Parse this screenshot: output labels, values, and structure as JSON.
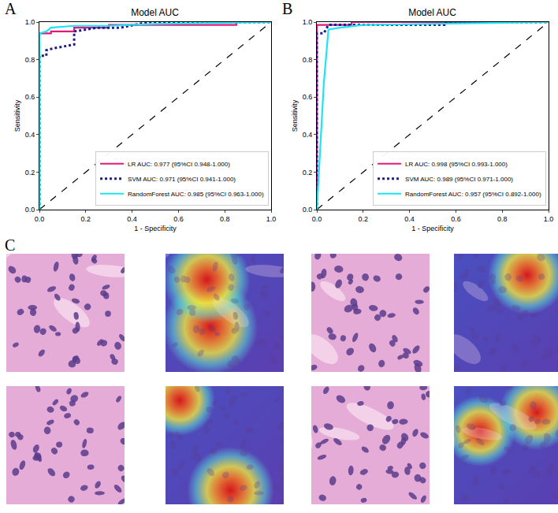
{
  "chart_data": [
    {
      "label": "A",
      "type": "line",
      "title": "Model AUC",
      "x_label": "1 - Specificity",
      "y_label": "Sensitivity",
      "xlim": [
        0,
        1
      ],
      "ylim": [
        0,
        1
      ],
      "xticks": [
        {
          "value": 0,
          "label": "0.0"
        },
        {
          "value": 0.2,
          "label": "0.2"
        },
        {
          "value": 0.4,
          "label": "0.4"
        },
        {
          "value": 0.6,
          "label": "0.6"
        },
        {
          "value": 0.8,
          "label": "0.8"
        },
        {
          "value": 1,
          "label": "1.0"
        }
      ],
      "yticks": [
        {
          "value": 0,
          "label": "0.0"
        },
        {
          "value": 0.2,
          "label": "0.2"
        },
        {
          "value": 0.4,
          "label": "0.4"
        },
        {
          "value": 0.6,
          "label": "0.6"
        },
        {
          "value": 0.8,
          "label": "0.8"
        },
        {
          "value": 1,
          "label": "1.0"
        }
      ],
      "grid": false,
      "legend": "lower right",
      "series": [
        {
          "name": "LR AUC: 0.977 (95%CI 0.948-1.000)",
          "color": "#e0197d",
          "line_style": "solid",
          "x": [
            0,
            0,
            0.05,
            0.05,
            0.15,
            0.15,
            0.3,
            0.3,
            0.85,
            0.85,
            1
          ],
          "values": [
            0,
            0.94,
            0.94,
            0.95,
            0.95,
            0.97,
            0.97,
            0.985,
            0.985,
            1,
            1
          ]
        },
        {
          "name": "SVM AUC: 0.971 (95%CI 0.941-1.000)",
          "color": "#1c1c8a",
          "line_style": "dot",
          "x": [
            0,
            0,
            0.03,
            0.03,
            0.06,
            0.1,
            0.15,
            0.15,
            0.2,
            0.25,
            0.35,
            0.47,
            1
          ],
          "values": [
            0,
            0.82,
            0.82,
            0.85,
            0.86,
            0.87,
            0.88,
            0.95,
            0.96,
            0.97,
            0.97,
            1,
            1
          ]
        },
        {
          "name": "RandomForest AUC: 0.985 (95%CI 0.963-1.000)",
          "color": "#1ee3f0",
          "line_style": "solid",
          "x": [
            0,
            0,
            0.03,
            0.05,
            0.15,
            0.3,
            0.5,
            1
          ],
          "values": [
            0,
            0.94,
            0.95,
            0.97,
            0.98,
            0.98,
            0.99,
            1
          ]
        }
      ],
      "reference_line": {
        "x": [
          0,
          1
        ],
        "values": [
          0,
          1
        ],
        "color": "#000000",
        "line_style": "dash"
      }
    },
    {
      "label": "B",
      "type": "line",
      "title": "Model AUC",
      "x_label": "1 - Specificity",
      "y_label": "Sensitivity",
      "xlim": [
        0,
        1
      ],
      "ylim": [
        0,
        1
      ],
      "xticks": [
        {
          "value": 0,
          "label": "0.0"
        },
        {
          "value": 0.2,
          "label": "0.2"
        },
        {
          "value": 0.4,
          "label": "0.4"
        },
        {
          "value": 0.6,
          "label": "0.6"
        },
        {
          "value": 0.8,
          "label": "0.8"
        },
        {
          "value": 1,
          "label": "1.0"
        }
      ],
      "yticks": [
        {
          "value": 0,
          "label": "0.0"
        },
        {
          "value": 0.2,
          "label": "0.2"
        },
        {
          "value": 0.4,
          "label": "0.4"
        },
        {
          "value": 0.6,
          "label": "0.6"
        },
        {
          "value": 0.8,
          "label": "0.8"
        },
        {
          "value": 1,
          "label": "1.0"
        }
      ],
      "grid": false,
      "legend": "lower right",
      "series": [
        {
          "name": "LR AUC: 0.998 (95%CI 0.993-1.000)",
          "color": "#e0197d",
          "line_style": "solid",
          "x": [
            0,
            0,
            0.15,
            0.15,
            1
          ],
          "values": [
            0,
            0.985,
            0.985,
            1,
            1
          ]
        },
        {
          "name": "SVM AUC: 0.989 (95%CI 0.971-1.000)",
          "color": "#1c1c8a",
          "line_style": "dot",
          "x": [
            0,
            0,
            0.03,
            0.05,
            0.55,
            0.55,
            1
          ],
          "values": [
            0,
            0.94,
            0.94,
            0.985,
            0.985,
            1,
            1
          ]
        },
        {
          "name": "RandomForest AUC: 0.957 (95%CI 0.892-1.000)",
          "color": "#1ee3f0",
          "line_style": "solid",
          "x": [
            0,
            0.03,
            0.05,
            0.1,
            0.2,
            0.5,
            1
          ],
          "values": [
            0,
            0.67,
            0.96,
            0.97,
            0.985,
            0.99,
            1
          ]
        }
      ],
      "reference_line": {
        "x": [
          0,
          1
        ],
        "values": [
          0,
          1
        ],
        "color": "#000000",
        "line_style": "dash"
      }
    }
  ],
  "figure_panel": {
    "label": "C"
  }
}
